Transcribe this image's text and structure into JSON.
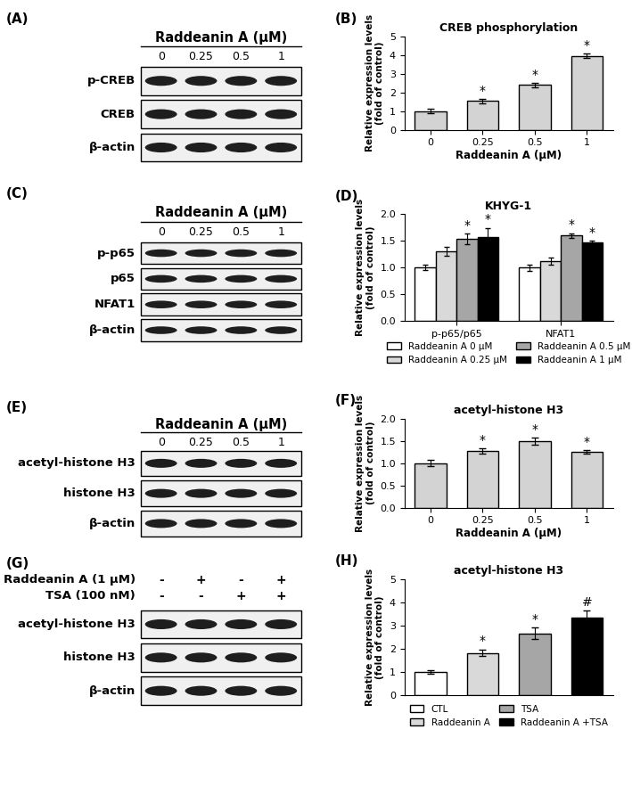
{
  "chart_data": [
    {
      "panel": "(B)",
      "type": "bar",
      "title": "CREB phosphorylation",
      "categories": [
        "0",
        "0.25",
        "0.5",
        "1"
      ],
      "values": [
        1.0,
        1.55,
        2.4,
        3.95
      ],
      "errors": [
        0.12,
        0.12,
        0.12,
        0.12
      ],
      "annotations": [
        null,
        "*",
        "*",
        "*"
      ],
      "color": "#d3d3d3",
      "xlabel": "Raddeanin A (μM)",
      "ylabel": "Relative expression levels\n(fold of control)",
      "ylim": [
        0,
        5
      ],
      "yticks": [
        0,
        1,
        2,
        3,
        4,
        5
      ]
    },
    {
      "panel": "(D)",
      "type": "bar",
      "title": "KHYG-1",
      "categories": [
        "p-p65/p65",
        "NFAT1"
      ],
      "series": [
        {
          "name": "Raddeanin A 0 μM",
          "color": "#ffffff",
          "values": [
            1.0,
            1.0
          ],
          "errors": [
            0.05,
            0.06
          ],
          "annotations": [
            null,
            null
          ]
        },
        {
          "name": "Raddeanin A 0.25 μM",
          "color": "#d9d9d9",
          "values": [
            1.3,
            1.12
          ],
          "errors": [
            0.08,
            0.07
          ],
          "annotations": [
            null,
            null
          ]
        },
        {
          "name": "Raddeanin A 0.5 μM",
          "color": "#a6a6a6",
          "values": [
            1.53,
            1.6
          ],
          "errors": [
            0.1,
            0.04
          ],
          "annotations": [
            "*",
            "*"
          ]
        },
        {
          "name": "Raddeanin A 1 μM",
          "color": "#000000",
          "values": [
            1.57,
            1.47
          ],
          "errors": [
            0.17,
            0.03
          ],
          "annotations": [
            "*",
            "*"
          ]
        }
      ],
      "ylabel": "Relative expression levels\n(fold of control)",
      "ylim": [
        0,
        2
      ],
      "yticks": [
        {
          "value": 0,
          "label": "0.0"
        },
        {
          "value": 0.5,
          "label": "0.5"
        },
        {
          "value": 1,
          "label": "1.0"
        },
        {
          "value": 1.5,
          "label": "1.5"
        },
        {
          "value": 2,
          "label": "2.0"
        }
      ],
      "legend": "upper center"
    },
    {
      "panel": "(F)",
      "type": "bar",
      "title": "acetyl-histone H3",
      "categories": [
        "0",
        "0.25",
        "0.5",
        "1"
      ],
      "values": [
        1.0,
        1.28,
        1.5,
        1.25
      ],
      "errors": [
        0.07,
        0.06,
        0.08,
        0.04
      ],
      "annotations": [
        null,
        "*",
        "*",
        "*"
      ],
      "color": "#d3d3d3",
      "xlabel": "Raddeanin A (μM)",
      "ylabel": "Relative expression levels\n(fold of control)",
      "ylim": [
        0,
        2
      ],
      "yticks": [
        {
          "value": 0,
          "label": "0.0"
        },
        {
          "value": 0.5,
          "label": "0.5"
        },
        {
          "value": 1,
          "label": "1.0"
        },
        {
          "value": 1.5,
          "label": "1.5"
        },
        {
          "value": 2,
          "label": "2.0"
        }
      ]
    },
    {
      "panel": "(H)",
      "type": "bar",
      "title": "acetyl-histone H3",
      "categories": [
        "CTL",
        "Raddeanin A",
        "TSA",
        "Raddeanin A +TSA"
      ],
      "values": [
        1.0,
        1.82,
        2.65,
        3.35
      ],
      "errors": [
        0.07,
        0.15,
        0.25,
        0.28
      ],
      "annotations": [
        null,
        "*",
        "*",
        "#"
      ],
      "colors": [
        "#ffffff",
        "#d9d9d9",
        "#a6a6a6",
        "#000000"
      ],
      "ylabel": "Relative expression levels\n(fold of control)",
      "ylim": [
        0,
        5
      ],
      "yticks": [
        0,
        1,
        2,
        3,
        4,
        5
      ],
      "tick_labels": "y",
      "legend": "upper center"
    }
  ],
  "blots": [
    {
      "panel": "(A)",
      "header": "Raddeanin A (μM)",
      "lanes": [
        "0",
        "0.25",
        "0.5",
        "1"
      ],
      "rows": [
        "p-CREB",
        "CREB",
        "β-actin"
      ]
    },
    {
      "panel": "(C)",
      "header": "Raddeanin A (μM)",
      "lanes": [
        "0",
        "0.25",
        "0.5",
        "1"
      ],
      "rows": [
        "p-p65",
        "p65",
        "NFAT1",
        "β-actin"
      ]
    },
    {
      "panel": "(E)",
      "header": "Raddeanin A (μM)",
      "lanes": [
        "0",
        "0.25",
        "0.5",
        "1"
      ],
      "rows": [
        "acetyl-histone H3",
        "histone H3",
        "β-actin"
      ]
    },
    {
      "panel": "(G)",
      "conditions": [
        {
          "label": "Raddeanin A (1 μM)",
          "marks": [
            "-",
            "+",
            "-",
            "+"
          ]
        },
        {
          "label": "TSA (100 nM)",
          "marks": [
            "-",
            "-",
            "+",
            "+"
          ]
        }
      ],
      "rows": [
        "acetyl-histone H3",
        "histone H3",
        "β-actin"
      ]
    }
  ]
}
